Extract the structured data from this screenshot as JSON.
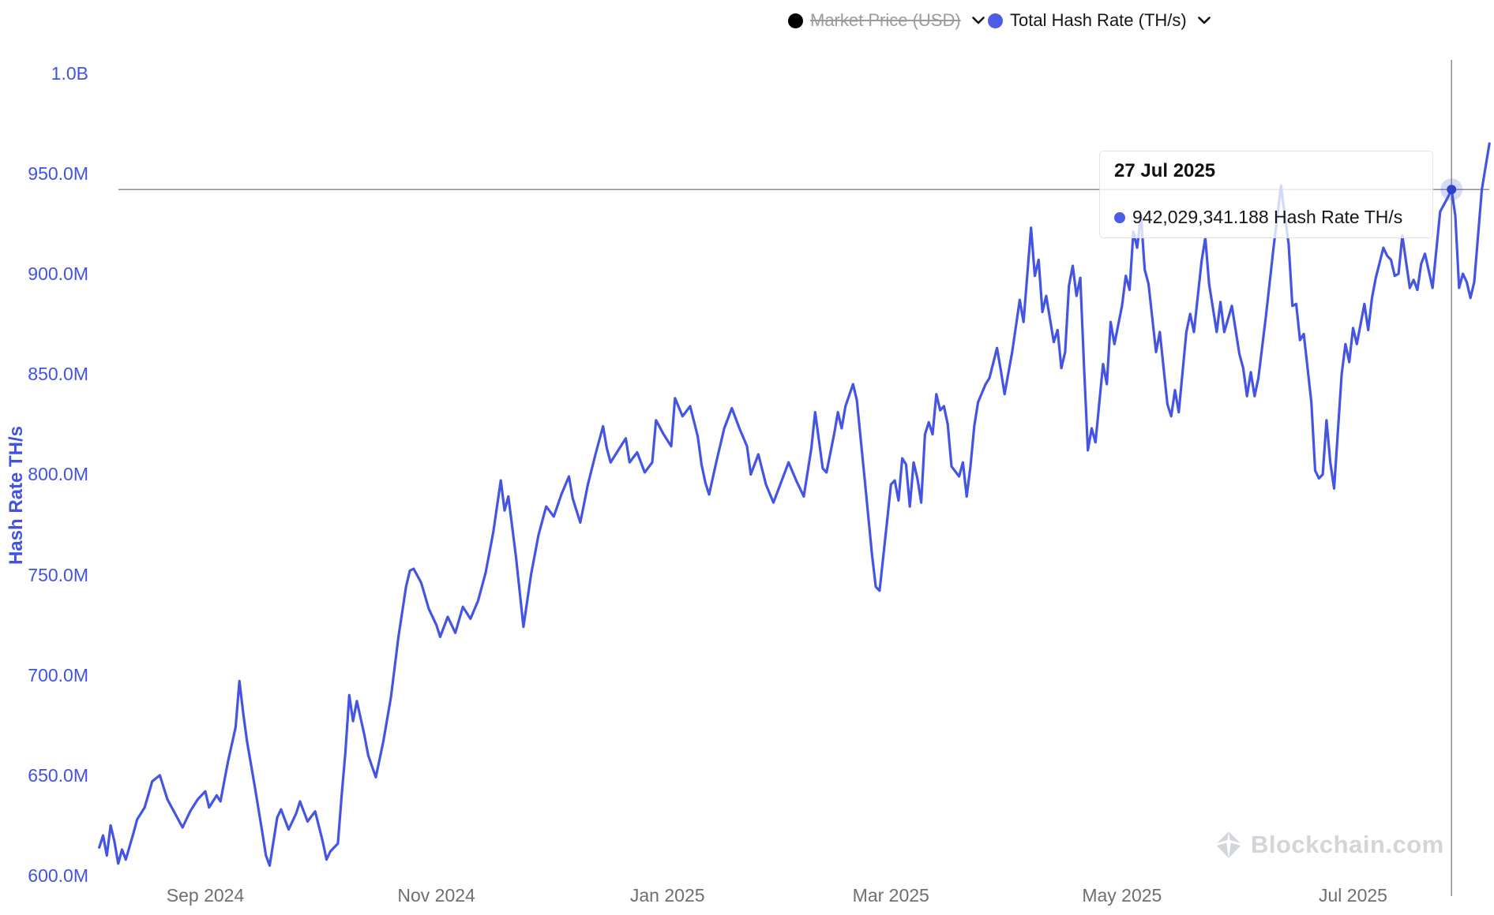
{
  "legend": [
    {
      "label": "Market Price (USD)",
      "color": "#000000",
      "disabled": true
    },
    {
      "label": "Total Hash Rate (TH/s)",
      "color": "#4c5be8",
      "disabled": false
    }
  ],
  "tooltip": {
    "date": "27 Jul 2025",
    "value_text": "942,029,341.188 Hash Rate TH/s",
    "marker_color": "#4c5be8"
  },
  "watermark": "Blockchain.com",
  "colors": {
    "line": "#4355e2",
    "y_label": "#4253e0",
    "x_label": "#6f6f6f",
    "crosshair": "#8f8f8f",
    "marker_dot": "#2f3fc7",
    "marker_halo": "rgba(67,85,226,0.22)"
  },
  "chart_data": {
    "type": "line",
    "title": "",
    "ylabel": "Hash Rate TH/s",
    "xlabel": "",
    "unit": "M TH/s (millions of TH/s)",
    "legend_position": "top-right",
    "grid": false,
    "ylim_M": [
      560,
      1020
    ],
    "y_ticks": [
      "1.0B",
      "950.0M",
      "900.0M",
      "850.0M",
      "800.0M",
      "750.0M",
      "700.0M",
      "650.0M",
      "600.0M"
    ],
    "y_tick_values_M": [
      1000,
      950,
      900,
      850,
      800,
      750,
      700,
      650,
      600
    ],
    "x_ticks": [
      "Sep 2024",
      "Nov 2024",
      "Jan 2025",
      "Mar 2025",
      "May 2025",
      "Jul 2025"
    ],
    "x_tick_dates": [
      "2024-09-01",
      "2024-11-01",
      "2025-01-01",
      "2025-03-01",
      "2025-05-01",
      "2025-07-01"
    ],
    "highlight": {
      "date": "2025-07-27",
      "value_M": 942.029341188,
      "label": "942,029,341.188 Hash Rate TH/s"
    },
    "series": [
      {
        "name": "Total Hash Rate (TH/s)",
        "points": [
          [
            "2024-08-04",
            614
          ],
          [
            "2024-08-05",
            620
          ],
          [
            "2024-08-06",
            610
          ],
          [
            "2024-08-07",
            625
          ],
          [
            "2024-08-08",
            617
          ],
          [
            "2024-08-09",
            606
          ],
          [
            "2024-08-10",
            613
          ],
          [
            "2024-08-11",
            608
          ],
          [
            "2024-08-13",
            621
          ],
          [
            "2024-08-14",
            628
          ],
          [
            "2024-08-16",
            634
          ],
          [
            "2024-08-18",
            647
          ],
          [
            "2024-08-20",
            650
          ],
          [
            "2024-08-21",
            644
          ],
          [
            "2024-08-22",
            638
          ],
          [
            "2024-08-24",
            631
          ],
          [
            "2024-08-26",
            624
          ],
          [
            "2024-08-28",
            632
          ],
          [
            "2024-08-30",
            638
          ],
          [
            "2024-09-01",
            642
          ],
          [
            "2024-09-02",
            634
          ],
          [
            "2024-09-04",
            640
          ],
          [
            "2024-09-05",
            637
          ],
          [
            "2024-09-07",
            657
          ],
          [
            "2024-09-09",
            674
          ],
          [
            "2024-09-10",
            697
          ],
          [
            "2024-09-11",
            681
          ],
          [
            "2024-09-12",
            667
          ],
          [
            "2024-09-14",
            645
          ],
          [
            "2024-09-16",
            622
          ],
          [
            "2024-09-17",
            610
          ],
          [
            "2024-09-18",
            605
          ],
          [
            "2024-09-20",
            629
          ],
          [
            "2024-09-21",
            633
          ],
          [
            "2024-09-23",
            623
          ],
          [
            "2024-09-25",
            631
          ],
          [
            "2024-09-26",
            637
          ],
          [
            "2024-09-28",
            627
          ],
          [
            "2024-09-30",
            632
          ],
          [
            "2024-10-02",
            617
          ],
          [
            "2024-10-03",
            608
          ],
          [
            "2024-10-04",
            612
          ],
          [
            "2024-10-06",
            616
          ],
          [
            "2024-10-07",
            640
          ],
          [
            "2024-10-08",
            662
          ],
          [
            "2024-10-09",
            690
          ],
          [
            "2024-10-10",
            677
          ],
          [
            "2024-10-11",
            687
          ],
          [
            "2024-10-13",
            670
          ],
          [
            "2024-10-14",
            660
          ],
          [
            "2024-10-16",
            649
          ],
          [
            "2024-10-18",
            667
          ],
          [
            "2024-10-20",
            689
          ],
          [
            "2024-10-22",
            719
          ],
          [
            "2024-10-24",
            744
          ],
          [
            "2024-10-25",
            752
          ],
          [
            "2024-10-26",
            753
          ],
          [
            "2024-10-28",
            746
          ],
          [
            "2024-10-30",
            733
          ],
          [
            "2024-11-01",
            725
          ],
          [
            "2024-11-02",
            719
          ],
          [
            "2024-11-04",
            729
          ],
          [
            "2024-11-06",
            721
          ],
          [
            "2024-11-08",
            734
          ],
          [
            "2024-11-10",
            728
          ],
          [
            "2024-11-12",
            737
          ],
          [
            "2024-11-14",
            751
          ],
          [
            "2024-11-16",
            771
          ],
          [
            "2024-11-18",
            797
          ],
          [
            "2024-11-19",
            782
          ],
          [
            "2024-11-20",
            789
          ],
          [
            "2024-11-22",
            759
          ],
          [
            "2024-11-24",
            724
          ],
          [
            "2024-11-26",
            750
          ],
          [
            "2024-11-28",
            770
          ],
          [
            "2024-11-30",
            784
          ],
          [
            "2024-12-02",
            779
          ],
          [
            "2024-12-04",
            790
          ],
          [
            "2024-12-06",
            799
          ],
          [
            "2024-12-07",
            788
          ],
          [
            "2024-12-09",
            776
          ],
          [
            "2024-12-11",
            795
          ],
          [
            "2024-12-13",
            810
          ],
          [
            "2024-12-15",
            824
          ],
          [
            "2024-12-16",
            813
          ],
          [
            "2024-12-17",
            806
          ],
          [
            "2024-12-19",
            812
          ],
          [
            "2024-12-21",
            818
          ],
          [
            "2024-12-22",
            806
          ],
          [
            "2024-12-24",
            811
          ],
          [
            "2024-12-26",
            801
          ],
          [
            "2024-12-28",
            806
          ],
          [
            "2024-12-29",
            827
          ],
          [
            "2024-12-31",
            820
          ],
          [
            "2025-01-02",
            814
          ],
          [
            "2025-01-03",
            838
          ],
          [
            "2025-01-05",
            829
          ],
          [
            "2025-01-07",
            834
          ],
          [
            "2025-01-09",
            819
          ],
          [
            "2025-01-10",
            805
          ],
          [
            "2025-01-11",
            796
          ],
          [
            "2025-01-12",
            790
          ],
          [
            "2025-01-14",
            807
          ],
          [
            "2025-01-16",
            823
          ],
          [
            "2025-01-18",
            833
          ],
          [
            "2025-01-20",
            823
          ],
          [
            "2025-01-22",
            814
          ],
          [
            "2025-01-23",
            800
          ],
          [
            "2025-01-25",
            810
          ],
          [
            "2025-01-27",
            795
          ],
          [
            "2025-01-29",
            786
          ],
          [
            "2025-01-31",
            796
          ],
          [
            "2025-02-02",
            806
          ],
          [
            "2025-02-04",
            797
          ],
          [
            "2025-02-06",
            789
          ],
          [
            "2025-02-08",
            813
          ],
          [
            "2025-02-09",
            831
          ],
          [
            "2025-02-10",
            817
          ],
          [
            "2025-02-11",
            803
          ],
          [
            "2025-02-12",
            801
          ],
          [
            "2025-02-14",
            820
          ],
          [
            "2025-02-15",
            831
          ],
          [
            "2025-02-16",
            823
          ],
          [
            "2025-02-17",
            834
          ],
          [
            "2025-02-19",
            845
          ],
          [
            "2025-02-20",
            837
          ],
          [
            "2025-02-22",
            799
          ],
          [
            "2025-02-24",
            760
          ],
          [
            "2025-02-25",
            744
          ],
          [
            "2025-02-26",
            742
          ],
          [
            "2025-02-28",
            777
          ],
          [
            "2025-03-01",
            795
          ],
          [
            "2025-03-02",
            797
          ],
          [
            "2025-03-03",
            787
          ],
          [
            "2025-03-04",
            808
          ],
          [
            "2025-03-05",
            805
          ],
          [
            "2025-03-06",
            784
          ],
          [
            "2025-03-07",
            806
          ],
          [
            "2025-03-08",
            798
          ],
          [
            "2025-03-09",
            786
          ],
          [
            "2025-03-10",
            820
          ],
          [
            "2025-03-11",
            826
          ],
          [
            "2025-03-12",
            820
          ],
          [
            "2025-03-13",
            840
          ],
          [
            "2025-03-14",
            832
          ],
          [
            "2025-03-15",
            834
          ],
          [
            "2025-03-16",
            825
          ],
          [
            "2025-03-17",
            804
          ],
          [
            "2025-03-19",
            799
          ],
          [
            "2025-03-20",
            806
          ],
          [
            "2025-03-21",
            789
          ],
          [
            "2025-03-22",
            804
          ],
          [
            "2025-03-23",
            824
          ],
          [
            "2025-03-24",
            836
          ],
          [
            "2025-03-26",
            845
          ],
          [
            "2025-03-27",
            848
          ],
          [
            "2025-03-29",
            863
          ],
          [
            "2025-03-30",
            852
          ],
          [
            "2025-03-31",
            840
          ],
          [
            "2025-04-02",
            861
          ],
          [
            "2025-04-04",
            887
          ],
          [
            "2025-04-05",
            876
          ],
          [
            "2025-04-07",
            923
          ],
          [
            "2025-04-08",
            899
          ],
          [
            "2025-04-09",
            907
          ],
          [
            "2025-04-10",
            881
          ],
          [
            "2025-04-11",
            889
          ],
          [
            "2025-04-13",
            866
          ],
          [
            "2025-04-14",
            872
          ],
          [
            "2025-04-15",
            853
          ],
          [
            "2025-04-16",
            861
          ],
          [
            "2025-04-17",
            894
          ],
          [
            "2025-04-18",
            904
          ],
          [
            "2025-04-19",
            889
          ],
          [
            "2025-04-20",
            898
          ],
          [
            "2025-04-21",
            853
          ],
          [
            "2025-04-22",
            812
          ],
          [
            "2025-04-23",
            823
          ],
          [
            "2025-04-24",
            816
          ],
          [
            "2025-04-26",
            855
          ],
          [
            "2025-04-27",
            845
          ],
          [
            "2025-04-28",
            876
          ],
          [
            "2025-04-29",
            865
          ],
          [
            "2025-05-01",
            884
          ],
          [
            "2025-05-02",
            899
          ],
          [
            "2025-05-03",
            892
          ],
          [
            "2025-05-04",
            921
          ],
          [
            "2025-05-05",
            913
          ],
          [
            "2025-05-06",
            929
          ],
          [
            "2025-05-07",
            902
          ],
          [
            "2025-05-08",
            895
          ],
          [
            "2025-05-10",
            861
          ],
          [
            "2025-05-11",
            871
          ],
          [
            "2025-05-13",
            835
          ],
          [
            "2025-05-14",
            829
          ],
          [
            "2025-05-15",
            842
          ],
          [
            "2025-05-16",
            831
          ],
          [
            "2025-05-18",
            871
          ],
          [
            "2025-05-19",
            880
          ],
          [
            "2025-05-20",
            871
          ],
          [
            "2025-05-22",
            906
          ],
          [
            "2025-05-23",
            918
          ],
          [
            "2025-05-24",
            895
          ],
          [
            "2025-05-25",
            883
          ],
          [
            "2025-05-26",
            871
          ],
          [
            "2025-05-27",
            886
          ],
          [
            "2025-05-28",
            871
          ],
          [
            "2025-05-30",
            884
          ],
          [
            "2025-06-01",
            860
          ],
          [
            "2025-06-02",
            853
          ],
          [
            "2025-06-03",
            839
          ],
          [
            "2025-06-04",
            851
          ],
          [
            "2025-06-05",
            839
          ],
          [
            "2025-06-06",
            848
          ],
          [
            "2025-06-08",
            879
          ],
          [
            "2025-06-10",
            913
          ],
          [
            "2025-06-12",
            944
          ],
          [
            "2025-06-13",
            929
          ],
          [
            "2025-06-14",
            915
          ],
          [
            "2025-06-15",
            884
          ],
          [
            "2025-06-16",
            885
          ],
          [
            "2025-06-17",
            867
          ],
          [
            "2025-06-18",
            870
          ],
          [
            "2025-06-20",
            836
          ],
          [
            "2025-06-21",
            802
          ],
          [
            "2025-06-22",
            798
          ],
          [
            "2025-06-23",
            800
          ],
          [
            "2025-06-24",
            827
          ],
          [
            "2025-06-25",
            806
          ],
          [
            "2025-06-26",
            793
          ],
          [
            "2025-06-28",
            850
          ],
          [
            "2025-06-29",
            865
          ],
          [
            "2025-06-30",
            856
          ],
          [
            "2025-07-01",
            873
          ],
          [
            "2025-07-02",
            865
          ],
          [
            "2025-07-04",
            885
          ],
          [
            "2025-07-05",
            872
          ],
          [
            "2025-07-06",
            888
          ],
          [
            "2025-07-07",
            898
          ],
          [
            "2025-07-09",
            913
          ],
          [
            "2025-07-10",
            909
          ],
          [
            "2025-07-11",
            907
          ],
          [
            "2025-07-12",
            899
          ],
          [
            "2025-07-13",
            900
          ],
          [
            "2025-07-14",
            919
          ],
          [
            "2025-07-16",
            893
          ],
          [
            "2025-07-17",
            897
          ],
          [
            "2025-07-18",
            892
          ],
          [
            "2025-07-19",
            905
          ],
          [
            "2025-07-20",
            910
          ],
          [
            "2025-07-22",
            893
          ],
          [
            "2025-07-24",
            931
          ],
          [
            "2025-07-26",
            938
          ],
          [
            "2025-07-27",
            942.029341188
          ],
          [
            "2025-07-28",
            929
          ],
          [
            "2025-07-29",
            893
          ],
          [
            "2025-07-30",
            900
          ],
          [
            "2025-07-31",
            896
          ],
          [
            "2025-08-01",
            888
          ],
          [
            "2025-08-02",
            896
          ],
          [
            "2025-08-04",
            942
          ],
          [
            "2025-08-06",
            965
          ]
        ]
      }
    ]
  }
}
